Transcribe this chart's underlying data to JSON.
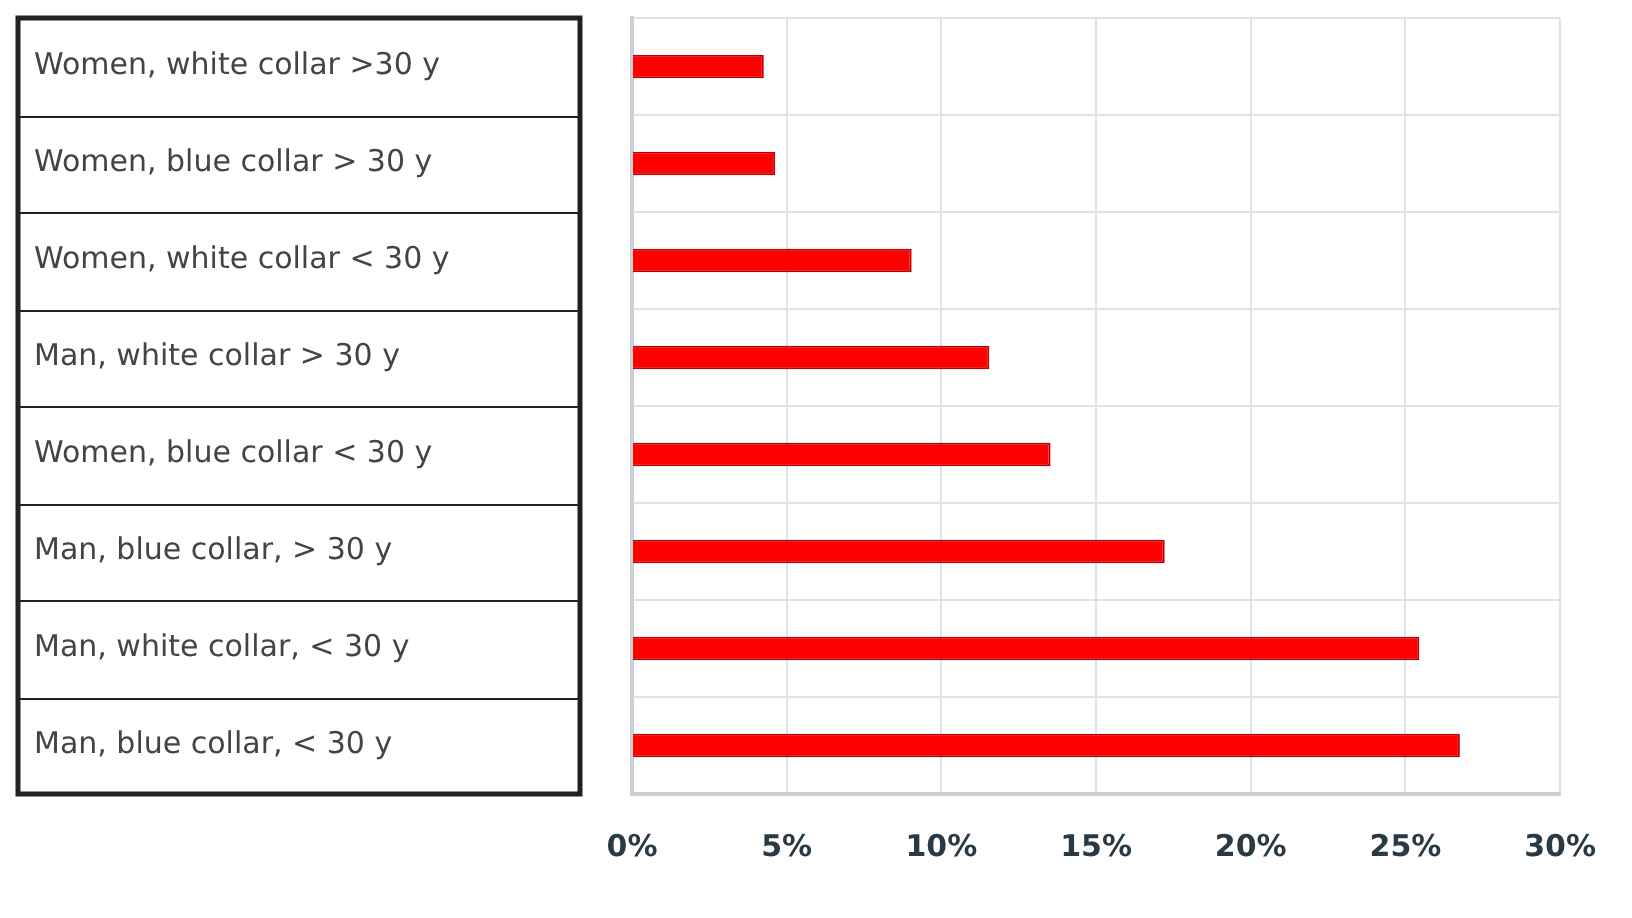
{
  "chart_data": {
    "type": "bar",
    "orientation": "horizontal",
    "categories": [
      "Women, white collar >30 y",
      "Women, blue collar > 30 y",
      "Women, white collar < 30 y",
      "Man, white collar > 30 y",
      "Women, blue collar < 30 y",
      "Man, blue collar, > 30 y",
      "Man, white collar, < 30 y",
      "Man, blue collar, < 30 y"
    ],
    "values": [
      4.26,
      4.63,
      9.04,
      11.55,
      13.53,
      17.22,
      25.45,
      26.76
    ],
    "color": "#ff0000",
    "xlim": [
      0,
      30
    ],
    "xticks": [
      {
        "value": 0,
        "label": "0%"
      },
      {
        "value": 5,
        "label": "5%"
      },
      {
        "value": 10,
        "label": "10%"
      },
      {
        "value": 15,
        "label": "15%"
      },
      {
        "value": 20,
        "label": "20%"
      },
      {
        "value": 25,
        "label": "25%"
      },
      {
        "value": 30,
        "label": "30%"
      }
    ],
    "grid": true,
    "legend": false
  }
}
